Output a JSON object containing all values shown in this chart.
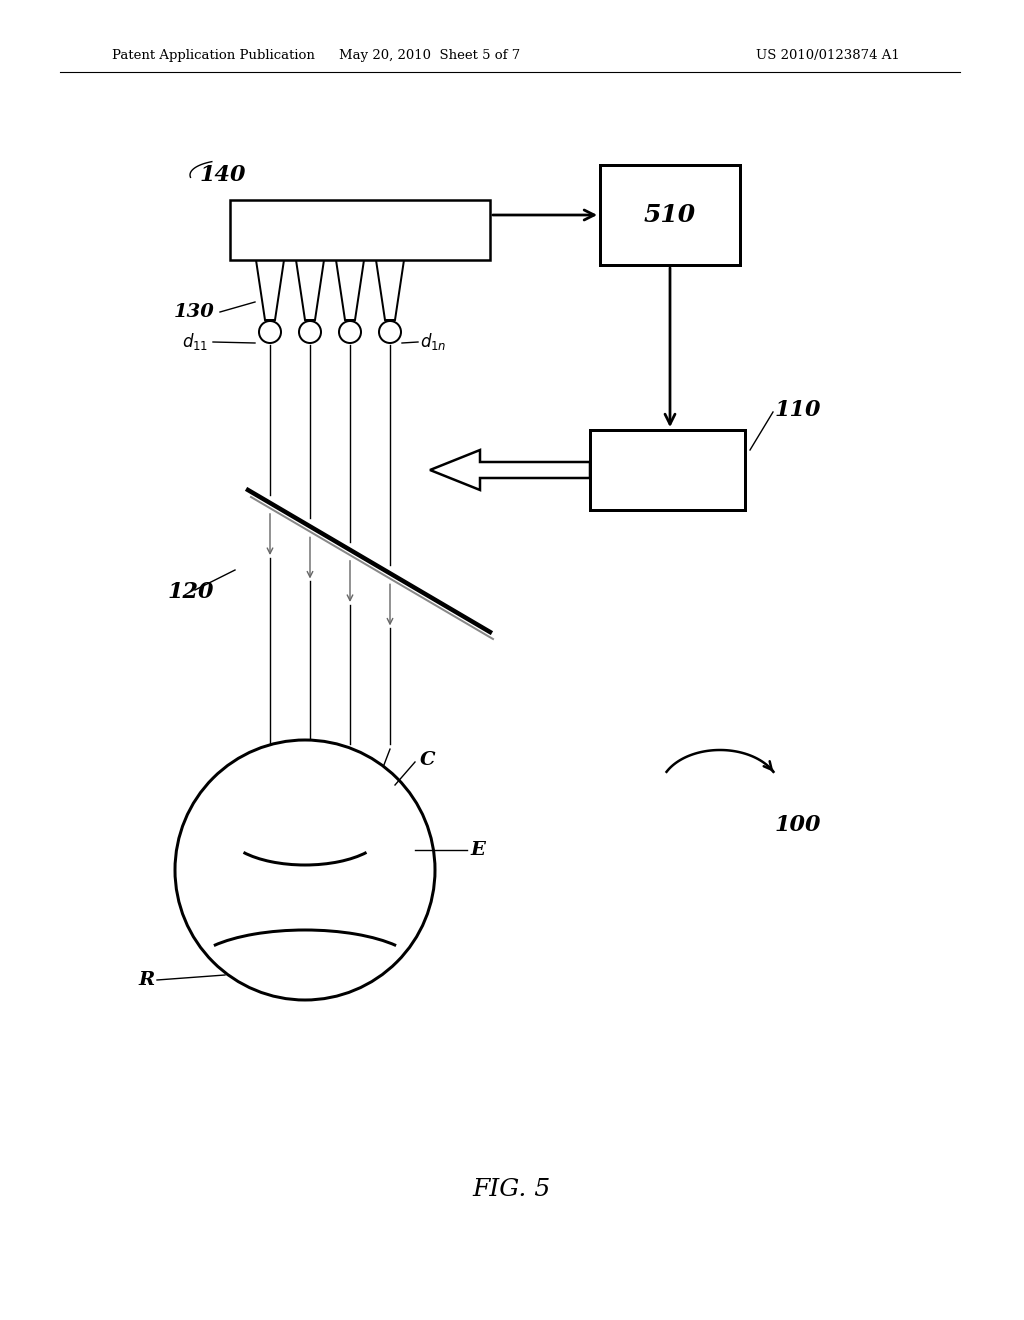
{
  "bg_color": "#ffffff",
  "header_left": "Patent Application Publication",
  "header_mid": "May 20, 2010  Sheet 5 of 7",
  "header_right": "US 2010/0123874 A1",
  "fig_label": "FIG. 5",
  "line_color": "#000000",
  "lw": 1.8
}
